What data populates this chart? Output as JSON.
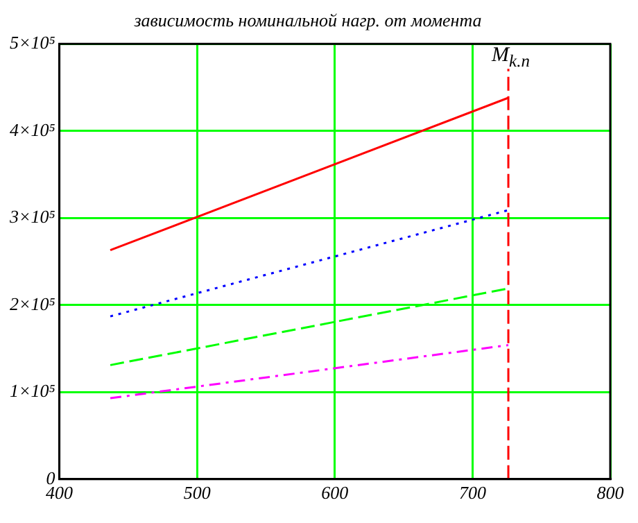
{
  "chart_data": {
    "type": "line",
    "title": "зависимость номинальной нагр. от момента",
    "x": [
      437,
      726
    ],
    "series": [
      {
        "color": "#ff0000",
        "line_style": "solid",
        "values": [
          263000,
          438000
        ]
      },
      {
        "color": "#0000ff",
        "line_style": "dotted",
        "values": [
          187000,
          309000
        ]
      },
      {
        "color": "#00ff00",
        "line_style": "dashed",
        "values": [
          131000,
          219000
        ]
      },
      {
        "color": "#ff00ff",
        "line_style": "dashdot",
        "values": [
          93000,
          154000
        ]
      }
    ],
    "xlim": [
      400,
      800
    ],
    "xticks": [
      400,
      500,
      600,
      700,
      800
    ],
    "ylim": [
      0,
      500000
    ],
    "yticks": [
      0,
      {
        "value": 100000,
        "label": "1×10⁵"
      },
      {
        "value": 200000,
        "label": "2×10⁵"
      },
      {
        "value": 300000,
        "label": "3×10⁵"
      },
      {
        "value": 400000,
        "label": "4×10⁵"
      },
      {
        "value": 500000,
        "label": "5×10⁵"
      }
    ],
    "ref_lines": [
      {
        "axis": "x",
        "value": 726,
        "label": "M$_{k.n}$",
        "color": "#ff0000",
        "line_style": "dashed"
      }
    ],
    "grid": true,
    "legend": false,
    "marker": "none"
  }
}
